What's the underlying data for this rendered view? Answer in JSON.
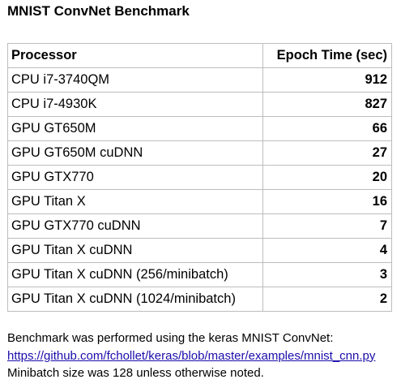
{
  "title": "MNIST ConvNet Benchmark",
  "table": {
    "headers": [
      "Processor",
      "Epoch Time (sec)"
    ],
    "rows": [
      {
        "processor": "CPU i7-3740QM",
        "time": "912"
      },
      {
        "processor": "CPU i7-4930K",
        "time": "827"
      },
      {
        "processor": "GPU GT650M",
        "time": "66"
      },
      {
        "processor": "GPU GT650M cuDNN",
        "time": "27"
      },
      {
        "processor": "GPU GTX770",
        "time": "20"
      },
      {
        "processor": "GPU Titan X",
        "time": "16"
      },
      {
        "processor": "GPU GTX770 cuDNN",
        "time": "7"
      },
      {
        "processor": "GPU Titan X cuDNN",
        "time": "4"
      },
      {
        "processor": "GPU Titan X cuDNN (256/minibatch)",
        "time": "3"
      },
      {
        "processor": "GPU Titan X cuDNN (1024/minibatch)",
        "time": "2"
      }
    ]
  },
  "notes": {
    "line1": "Benchmark was performed using the keras MNIST ConvNet:",
    "link": "https://github.com/fchollet/keras/blob/master/examples/mnist_cnn.py",
    "line3": "Minibatch size was 128 unless otherwise noted."
  },
  "colors": {
    "border": "#bdbdbd",
    "link": "#1a0dab",
    "text": "#000000"
  }
}
